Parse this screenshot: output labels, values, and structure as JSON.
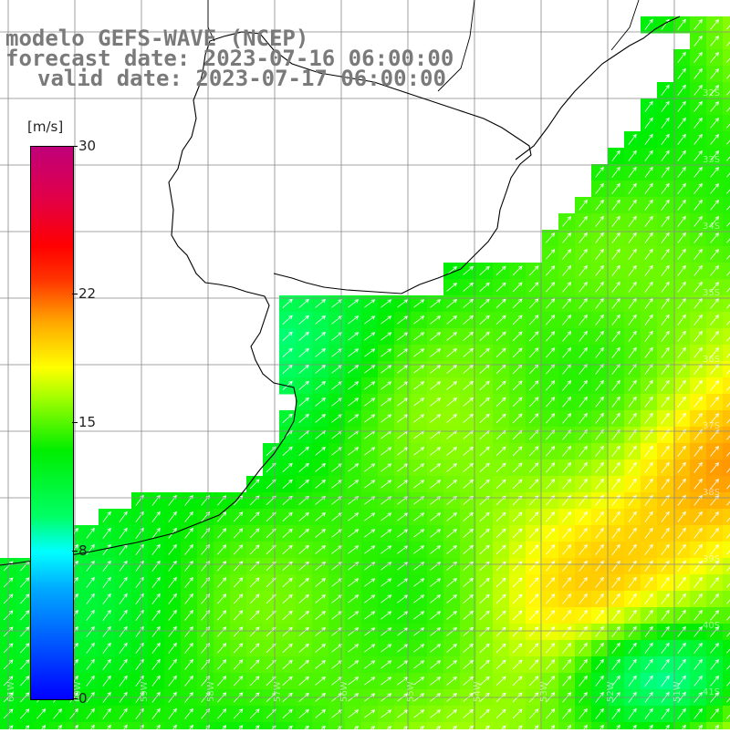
{
  "header": {
    "line1": "modelo GEFS-WAVE (NCEP)",
    "line2": "forecast date: 2023-07-16 06:00:00",
    "line3": "valid date: 2023-07-17 06:00:00"
  },
  "colorbar": {
    "unit": "[m/s]",
    "min": 0,
    "max": 30,
    "ticks": [
      {
        "value": 30,
        "label": "30"
      },
      {
        "value": 22,
        "label": "22"
      },
      {
        "value": 15,
        "label": "15"
      },
      {
        "value": 8,
        "label": "8"
      },
      {
        "value": 0,
        "label": "0"
      }
    ]
  },
  "map": {
    "variable": "wind speed",
    "lat_labels": [
      "32S",
      "33S",
      "34S",
      "35S",
      "36S",
      "37S",
      "38S",
      "39S",
      "40S",
      "41S"
    ],
    "lon_labels": [
      "61W",
      "60W",
      "59W",
      "58W",
      "57W",
      "56W",
      "55W",
      "54W",
      "53W",
      "52W",
      "51W"
    ],
    "colors": {
      "land": "#ffffff",
      "coast": "#000000",
      "grid": "#888888",
      "arrows": "#ffffff"
    }
  }
}
